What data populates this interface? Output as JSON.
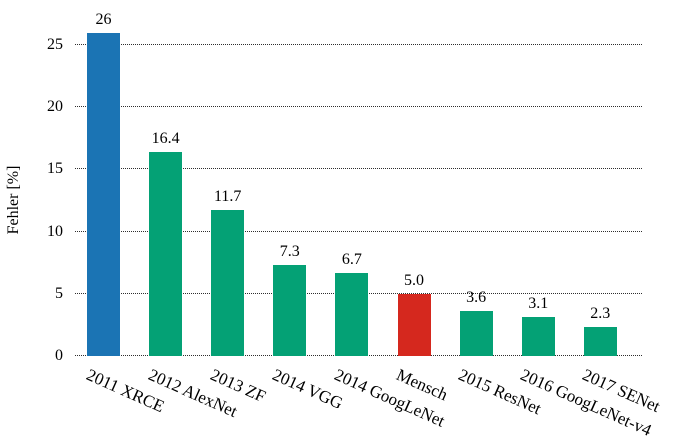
{
  "chart_data": {
    "type": "bar",
    "title": "",
    "xlabel": "",
    "ylabel": "Fehler [%]",
    "ylim": [
      0,
      27
    ],
    "yticks": [
      "0",
      "5",
      "10",
      "15",
      "20",
      "25"
    ],
    "ytick_values": [
      0,
      5,
      10,
      15,
      20,
      25
    ],
    "grid": {
      "horizontal": true,
      "style": "dotted",
      "includes_baseline": true
    },
    "legend": "none",
    "categories": [
      "2011 XRCE",
      "2012 AlexNet",
      "2013 ZF",
      "2014 VGG",
      "2014 GoogLeNet",
      "Mensch",
      "2015 ResNet",
      "2016 GoogLeNet-v4",
      "2017 SENet"
    ],
    "values": [
      26,
      16.4,
      11.7,
      7.3,
      6.7,
      5.0,
      3.6,
      3.1,
      2.3
    ],
    "value_labels": [
      "26",
      "16.4",
      "11.7",
      "7.3",
      "6.7",
      "5.0",
      "3.6",
      "3.1",
      "2.3"
    ],
    "bar_colors": [
      "#1B74B4",
      "#04A175",
      "#04A175",
      "#04A175",
      "#04A175",
      "#D5281E",
      "#04A175",
      "#04A175",
      "#04A175"
    ],
    "palette": {
      "blue": "#1B74B4",
      "green": "#04A175",
      "red": "#D5281E"
    }
  }
}
